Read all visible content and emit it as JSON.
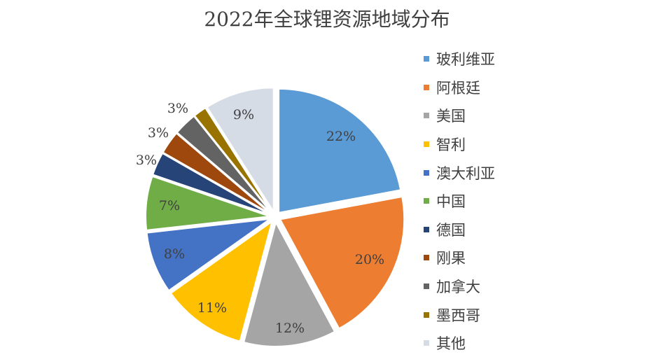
{
  "chart_data": {
    "type": "pie",
    "title": "2022年全球锂资源地域分布",
    "categories": [
      "玻利维亚",
      "阿根廷",
      "美国",
      "智利",
      "澳大利亚",
      "中国",
      "德国",
      "刚果",
      "加拿大",
      "墨西哥",
      "其他"
    ],
    "values": [
      22,
      20,
      12,
      11,
      8,
      7,
      3,
      3,
      3,
      1.7,
      9
    ],
    "data_labels": [
      "22%",
      "20%",
      "12%",
      "11%",
      "8%",
      "7%",
      "3%",
      "3%",
      "3%",
      "",
      "9%"
    ],
    "colors": [
      "#5B9BD5",
      "#ED7D31",
      "#A5A5A5",
      "#FFC000",
      "#4472C4",
      "#70AD47",
      "#264478",
      "#9E480E",
      "#636363",
      "#997300",
      "#D6DCE5"
    ],
    "legend_position": "right"
  }
}
